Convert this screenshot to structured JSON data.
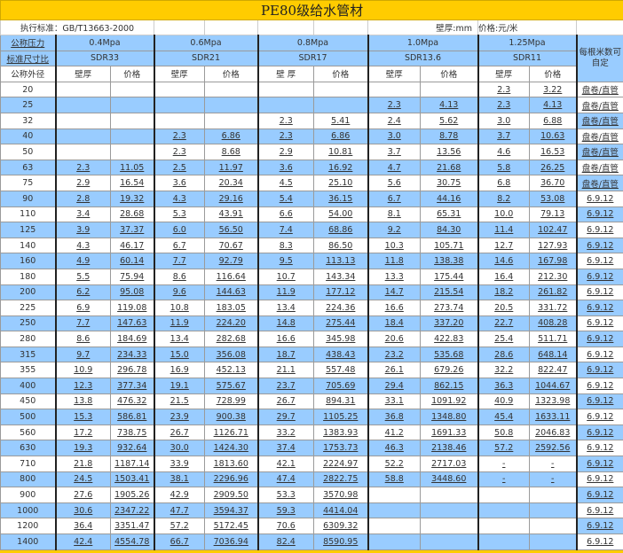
{
  "title": "PE80级给水管材",
  "info": {
    "standard": "执行标准：GB/T13663-2000",
    "wall_unit": "壁厚:mm",
    "price_unit": "价格:元/米"
  },
  "header": {
    "pressure_label": "公称压力",
    "sdr_label": "标准尺寸比",
    "od_label": "公称外径",
    "wall_label": "壁厚",
    "wall_label_spaced": "壁 厚",
    "price_label": "价格",
    "per_length": "每根米数可自定",
    "groups": [
      {
        "pressure": "0.4Mpa",
        "sdr": "SDR33"
      },
      {
        "pressure": "0.6Mpa",
        "sdr": "SDR21"
      },
      {
        "pressure": "0.8Mpa",
        "sdr": "SDR17"
      },
      {
        "pressure": "1.0Mpa",
        "sdr": "SDR13.6"
      },
      {
        "pressure": "1.25Mpa",
        "sdr": "SDR11"
      }
    ]
  },
  "colors": {
    "title": "#FFCC00",
    "stripe": "#99CCFF"
  },
  "rows": [
    [
      "20",
      "",
      "",
      "",
      "",
      "",
      "",
      "",
      "",
      "2.3",
      "3.22",
      "盘卷/直管"
    ],
    [
      "25",
      "",
      "",
      "",
      "",
      "",
      "",
      "2.3",
      "4.13",
      "2.3",
      "4.13",
      "盘卷/直管"
    ],
    [
      "32",
      "",
      "",
      "",
      "",
      "2.3",
      "5.41",
      "2.4",
      "5.62",
      "3.0",
      "6.88",
      "盘卷/直管"
    ],
    [
      "40",
      "",
      "",
      "2.3",
      "6.86",
      "2.3",
      "6.86",
      "3.0",
      "8.78",
      "3.7",
      "10.63",
      "盘卷/直管"
    ],
    [
      "50",
      "",
      "",
      "2.3",
      "8.68",
      "2.9",
      "10.81",
      "3.7",
      "13.56",
      "4.6",
      "16.53",
      "盘卷/直管"
    ],
    [
      "63",
      "2.3",
      "11.05",
      "2.5",
      "11.97",
      "3.6",
      "16.92",
      "4.7",
      "21.68",
      "5.8",
      "26.25",
      "盘卷/直管"
    ],
    [
      "75",
      "2.9",
      "16.54",
      "3.6",
      "20.34",
      "4.5",
      "25.10",
      "5.6",
      "30.75",
      "6.8",
      "36.70",
      "盘卷/直管"
    ],
    [
      "90",
      "2.8",
      "19.32",
      "4.3",
      "29.16",
      "5.4",
      "36.15",
      "6.7",
      "44.16",
      "8.2",
      "53.08",
      "6.9.12"
    ],
    [
      "110",
      "3.4",
      "28.68",
      "5.3",
      "43.91",
      "6.6",
      "54.00",
      "8.1",
      "65.31",
      "10.0",
      "79.13",
      "6.9.12"
    ],
    [
      "125",
      "3.9",
      "37.37",
      "6.0",
      "56.50",
      "7.4",
      "68.86",
      "9.2",
      "84.30",
      "11.4",
      "102.47",
      "6.9.12"
    ],
    [
      "140",
      "4.3",
      "46.17",
      "6.7",
      "70.67",
      "8.3",
      "86.50",
      "10.3",
      "105.71",
      "12.7",
      "127.93",
      "6.9.12"
    ],
    [
      "160",
      "4.9",
      "60.14",
      "7.7",
      "92.79",
      "9.5",
      "113.13",
      "11.8",
      "138.38",
      "14.6",
      "167.98",
      "6.9.12"
    ],
    [
      "180",
      "5.5",
      "75.94",
      "8.6",
      "116.64",
      "10.7",
      "143.34",
      "13.3",
      "175.44",
      "16.4",
      "212.30",
      "6.9.12"
    ],
    [
      "200",
      "6.2",
      "95.08",
      "9.6",
      "144.63",
      "11.9",
      "177.12",
      "14.7",
      "215.54",
      "18.2",
      "261.82",
      "6.9.12"
    ],
    [
      "225",
      "6.9",
      "119.08",
      "10.8",
      "183.05",
      "13.4",
      "224.36",
      "16.6",
      "273.74",
      "20.5",
      "331.72",
      "6.9.12"
    ],
    [
      "250",
      "7.7",
      "147.63",
      "11.9",
      "224.20",
      "14.8",
      "275.44",
      "18.4",
      "337.20",
      "22.7",
      "408.28",
      "6.9.12"
    ],
    [
      "280",
      "8.6",
      "184.69",
      "13.4",
      "282.68",
      "16.6",
      "345.98",
      "20.6",
      "422.83",
      "25.4",
      "511.71",
      "6.9.12"
    ],
    [
      "315",
      "9.7",
      "234.33",
      "15.0",
      "356.08",
      "18.7",
      "438.43",
      "23.2",
      "535.68",
      "28.6",
      "648.14",
      "6.9.12"
    ],
    [
      "355",
      "10.9",
      "296.78",
      "16.9",
      "452.13",
      "21.1",
      "557.48",
      "26.1",
      "679.26",
      "32.2",
      "822.47",
      "6.9.12"
    ],
    [
      "400",
      "12.3",
      "377.34",
      "19.1",
      "575.67",
      "23.7",
      "705.69",
      "29.4",
      "862.15",
      "36.3",
      "1044.67",
      "6.9.12"
    ],
    [
      "450",
      "13.8",
      "476.32",
      "21.5",
      "728.99",
      "26.7",
      "894.31",
      "33.1",
      "1091.92",
      "40.9",
      "1323.98",
      "6.9.12"
    ],
    [
      "500",
      "15.3",
      "586.81",
      "23.9",
      "900.38",
      "29.7",
      "1105.25",
      "36.8",
      "1348.80",
      "45.4",
      "1633.11",
      "6.9.12"
    ],
    [
      "560",
      "17.2",
      "738.75",
      "26.7",
      "1126.71",
      "33.2",
      "1383.93",
      "41.2",
      "1691.33",
      "50.8",
      "2046.83",
      "6.9.12"
    ],
    [
      "630",
      "19.3",
      "932.64",
      "30.0",
      "1424.30",
      "37.4",
      "1753.73",
      "46.3",
      "2138.46",
      "57.2",
      "2592.56",
      "6.9.12"
    ],
    [
      "710",
      "21.8",
      "1187.14",
      "33.9",
      "1813.60",
      "42.1",
      "2224.97",
      "52.2",
      "2717.03",
      "-",
      "-",
      "6.9.12"
    ],
    [
      "800",
      "24.5",
      "1503.41",
      "38.1",
      "2296.96",
      "47.4",
      "2822.75",
      "58.8",
      "3448.60",
      "-",
      "-",
      "6.9.12"
    ],
    [
      "900",
      "27.6",
      "1905.26",
      "42.9",
      "2909.50",
      "53.3",
      "3570.98",
      "",
      "",
      "",
      "",
      "6.9.12"
    ],
    [
      "1000",
      "30.6",
      "2347.22",
      "47.7",
      "3594.37",
      "59.3",
      "4414.04",
      "",
      "",
      "",
      "",
      "6.9.12"
    ],
    [
      "1200",
      "36.4",
      "3351.47",
      "57.2",
      "5172.45",
      "70.6",
      "6309.32",
      "",
      "",
      "",
      "",
      "6.9.12"
    ],
    [
      "1400",
      "42.4",
      "4554.78",
      "66.7",
      "7036.94",
      "82.4",
      "8590.95",
      "",
      "",
      "",
      "",
      "6.9.12"
    ]
  ]
}
